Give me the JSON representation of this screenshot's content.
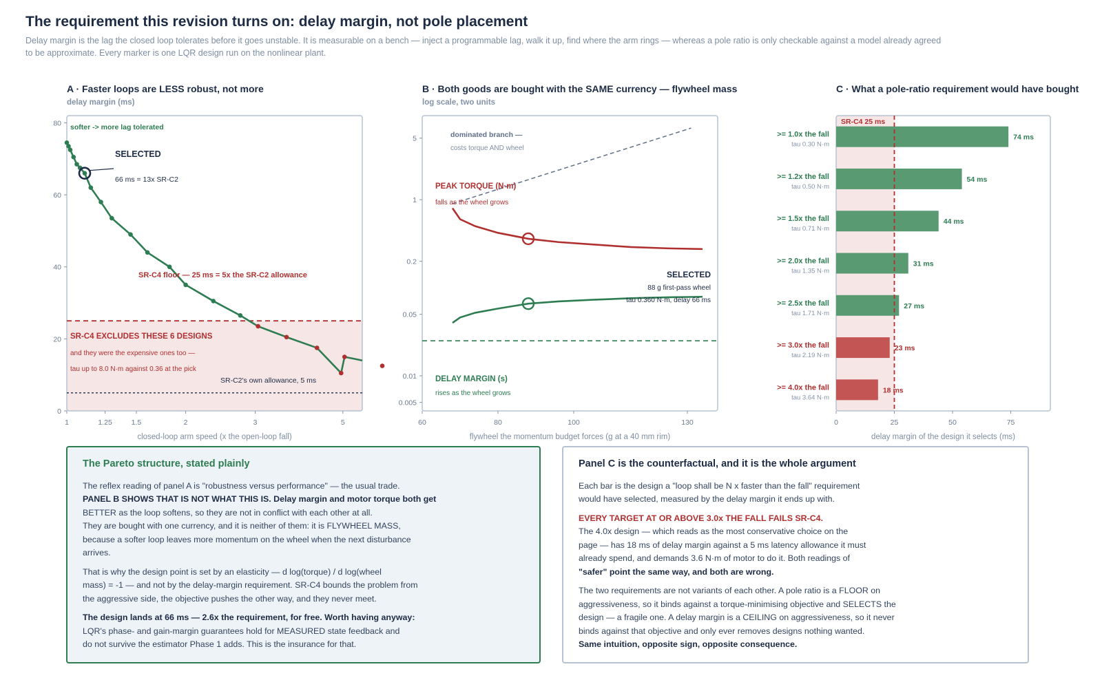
{
  "header": {
    "title": "The requirement this revision turns on: delay margin, not pole placement",
    "subtitle": "Delay margin is the lag the closed loop tolerates before it goes unstable. It is measurable on a bench — inject a programmable lag, walk it up, find where the arm rings — whereas a pole ratio is only checkable against a model already agreed to be approximate. Every marker is one LQR design run on the nonlinear plant."
  },
  "colors": {
    "green": "#2e7d52",
    "red": "#b03030",
    "navy": "#1d2b45",
    "frame": "#b7c2d2",
    "band": "#f6e6e6"
  },
  "panelA": {
    "title": "A · Faster loops are LESS robust, not more",
    "ylabel_top": "delay margin (ms)",
    "note_softer": "softer -> more lag tolerated",
    "selected_label": "SELECTED",
    "selected_detail": "66 ms = 13x SR-C2",
    "floor_label": "SR-C4 floor — 25 ms = 5x the SR-C2 allowance",
    "excl_title": "SR-C4 EXCLUDES THESE 6 DESIGNS",
    "excl_line1": "and they were the expensive ones too —",
    "excl_line2": "tau up to 8.0 N·m against 0.36 at the pick",
    "allowance_label": "SR-C2's own allowance, 5 ms"
  },
  "panelB": {
    "title": "B · Both goods are bought with the SAME currency — flywheel mass",
    "ylabel_top": "log scale, two units",
    "dominated_title": "dominated branch —",
    "dominated_sub": "costs torque AND wheel",
    "torque_title": "PEAK TORQUE (N·m)",
    "torque_sub": "falls as the wheel grows",
    "dm_title": "DELAY MARGIN (s)",
    "dm_sub": "rises as the wheel grows",
    "selected_label": "SELECTED",
    "selected_line1": "88 g first-pass wheel",
    "selected_line2": "tau 0.360 N·m, delay 66 ms"
  },
  "panelC": {
    "title": "C · What a pole-ratio requirement would have bought",
    "floor_label": "SR-C4 25 ms",
    "bar_labels": [
      ">= 1.0x the fall",
      ">= 1.2x the fall",
      ">= 1.5x the fall",
      ">= 2.0x the fall",
      ">= 2.5x the fall",
      ">= 3.0x the fall",
      ">= 4.0x the fall"
    ],
    "tau_labels": [
      "tau 0.30 N·m",
      "tau 0.50 N·m",
      "tau 0.71 N·m",
      "tau 1.35 N·m",
      "tau 1.71 N·m",
      "tau 2.19 N·m",
      "tau 3.64 N·m"
    ],
    "value_labels": [
      "74 ms",
      "54 ms",
      "44 ms",
      "31 ms",
      "27 ms",
      "23 ms",
      "18 ms"
    ]
  },
  "chart_data": [
    {
      "type": "line",
      "title": "A · Faster loops are LESS robust, not more",
      "xlabel": "closed-loop arm speed (x the open-loop fall)",
      "ylabel": "delay margin (ms)",
      "xscale": "log",
      "xlim": [
        1,
        5.6
      ],
      "ylim": [
        0,
        82
      ],
      "xticks": [
        1,
        1.25,
        1.5,
        2,
        3,
        5
      ],
      "xtick_labels": [
        "1",
        "1.25",
        "1.5",
        "2",
        "3",
        "5"
      ],
      "yticks": [
        0,
        20,
        40,
        60,
        80
      ],
      "ytick_labels": [
        "0",
        "20",
        "40",
        "60",
        "80"
      ],
      "series": [
        {
          "x": [
            1.0,
            1.01,
            1.02,
            1.04,
            1.06,
            1.08,
            1.11,
            1.15,
            1.22,
            1.3,
            1.45,
            1.6,
            1.82,
            2.0,
            2.35,
            2.75,
            3.05,
            3.6,
            4.3,
            4.95,
            5.05
          ],
          "y": [
            74.5,
            73.5,
            72.5,
            70.5,
            68.5,
            67.5,
            66,
            62,
            58,
            53.5,
            49,
            44,
            40,
            35,
            30.5,
            26.5,
            23.5,
            20.5,
            17.5,
            10.5,
            15
          ],
          "excluded_from_index": 16
        }
      ],
      "outlier": {
        "x": 6.5,
        "y": 12.5
      },
      "selected": {
        "x": 1.11,
        "y": 66
      },
      "floor_ms": 25,
      "allowance_ms": 5
    },
    {
      "type": "line",
      "title": "B · Both goods are bought with the SAME currency — flywheel mass",
      "xlabel": "flywheel the momentum budget forces (g at a 40 mm rim)",
      "ylabel": "log scale, two units",
      "yscale": "log",
      "xlim": [
        60,
        138
      ],
      "ylim": [
        0.004,
        9
      ],
      "xticks": [
        60,
        80,
        100,
        130
      ],
      "xtick_labels": [
        "60",
        "80",
        "100",
        "130"
      ],
      "yticks": [
        0.005,
        0.01,
        0.05,
        0.2,
        1,
        5
      ],
      "ytick_labels": [
        "0.005",
        "0.01",
        "0.05",
        "0.2",
        "1",
        "5"
      ],
      "series": [
        {
          "name": "PEAK TORQUE (N·m)",
          "x": [
            68,
            70,
            74,
            80,
            88,
            96,
            105,
            115,
            125,
            134
          ],
          "y": [
            0.8,
            0.6,
            0.5,
            0.42,
            0.36,
            0.33,
            0.31,
            0.29,
            0.28,
            0.275
          ]
        },
        {
          "name": "DELAY MARGIN (s)",
          "x": [
            68,
            70,
            74,
            80,
            88,
            96,
            105,
            115,
            125,
            134
          ],
          "y": [
            0.04,
            0.046,
            0.052,
            0.058,
            0.066,
            0.07,
            0.073,
            0.076,
            0.078,
            0.079
          ]
        },
        {
          "name": "dominated branch",
          "x": [
            68,
            131
          ],
          "y": [
            0.9,
            6.5
          ]
        }
      ],
      "floor_s": 0.025,
      "selected": {
        "x": 88,
        "torque": 0.36,
        "delay": 0.066
      }
    },
    {
      "type": "bar",
      "orientation": "horizontal",
      "title": "C · What a pole-ratio requirement would have bought",
      "xlabel": "delay margin of the design it selects (ms)",
      "xlim": [
        0,
        92
      ],
      "xticks": [
        0,
        25,
        50,
        75
      ],
      "xtick_labels": [
        "0",
        "25",
        "50",
        "75"
      ],
      "categories": [
        ">= 1.0x the fall",
        ">= 1.2x the fall",
        ">= 1.5x the fall",
        ">= 2.0x the fall",
        ">= 2.5x the fall",
        ">= 3.0x the fall",
        ">= 4.0x the fall"
      ],
      "values": [
        74,
        54,
        44,
        31,
        27,
        23,
        18
      ],
      "tau": [
        0.3,
        0.5,
        0.71,
        1.35,
        1.71,
        2.19,
        3.64
      ],
      "floor_ms": 25
    }
  ],
  "box1": {
    "title": "The Pareto structure, stated plainly",
    "p1_l1": "The reflex reading of panel A is \"robustness versus performance\" — the usual trade.",
    "p1_l2": "PANEL B SHOWS THAT IS NOT WHAT THIS IS. Delay margin and motor torque both get",
    "p1_l3": "BETTER as the loop softens, so they are not in conflict with each other at all.",
    "p1_l4": "They are bought with one currency, and it is neither of them: it is FLYWHEEL MASS,",
    "p1_l5": "because a softer loop leaves more momentum on the wheel when the next disturbance",
    "p1_l6": "arrives.",
    "p2_l1": "That is why the design point is set by an elasticity — d log(torque) / d log(wheel",
    "p2_l2": "mass) = -1 — and not by the delay-margin requirement. SR-C4 bounds the problem from",
    "p2_l3": "the aggressive side, the objective pushes the other way, and they never meet.",
    "p3_l1": "The design lands at 66 ms — 2.6x the requirement, for free. Worth having anyway:",
    "p3_l2": "LQR's phase- and gain-margin guarantees hold for MEASURED state feedback and",
    "p3_l3": "do not survive the estimator Phase 1 adds. This is the insurance for that."
  },
  "box2": {
    "title": "Panel C is the counterfactual, and it is the whole argument",
    "p1_l1": "Each bar is the design a \"loop shall be N x faster than the fall\" requirement",
    "p1_l2": "would have selected, measured by the delay margin it ends up with.",
    "p2_l1": "EVERY TARGET AT OR ABOVE 3.0x THE FALL FAILS SR-C4.",
    "p2_l2": "The 4.0x design — which reads as the most conservative choice on the",
    "p2_l3": "page — has 18 ms of delay margin against a 5 ms latency allowance it must",
    "p2_l4": "already spend, and demands 3.6 N·m of motor to do it. Both readings of",
    "p2_l5": "\"safer\" point the same way, and both are wrong.",
    "p3_l1": "The two requirements are not variants of each other. A pole ratio is a FLOOR on",
    "p3_l2": "aggressiveness, so it binds against a torque-minimising objective and SELECTS the",
    "p3_l3": "design — a fragile one. A delay margin is a CEILING on aggressiveness, so it never",
    "p3_l4": "binds against that objective and only ever removes designs nothing wanted.",
    "p3_l5": "Same intuition, opposite sign, opposite consequence."
  }
}
